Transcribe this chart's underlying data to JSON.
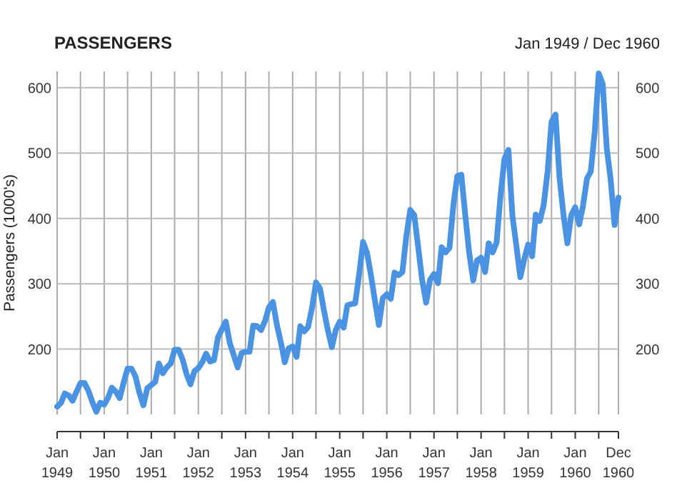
{
  "chart_data": {
    "type": "line",
    "title": "PASSENGERS",
    "subtitle": "Jan 1949 / Dec 1960",
    "ylabel": "Passengers (1000's)",
    "xlim": [
      "1949-01",
      "1960-12"
    ],
    "xticks": [
      {
        "value": "1949-01",
        "label": "Jan 1949"
      },
      {
        "value": "1949-07",
        "label": null
      },
      {
        "value": "1950-01",
        "label": "Jan 1950"
      },
      {
        "value": "1950-07",
        "label": null
      },
      {
        "value": "1951-01",
        "label": "Jan 1951"
      },
      {
        "value": "1951-07",
        "label": null
      },
      {
        "value": "1952-01",
        "label": "Jan 1952"
      },
      {
        "value": "1952-07",
        "label": null
      },
      {
        "value": "1953-01",
        "label": "Jan 1953"
      },
      {
        "value": "1953-07",
        "label": null
      },
      {
        "value": "1954-01",
        "label": "Jan 1954"
      },
      {
        "value": "1954-07",
        "label": null
      },
      {
        "value": "1955-01",
        "label": "Jan 1955"
      },
      {
        "value": "1955-07",
        "label": null
      },
      {
        "value": "1956-01",
        "label": "Jan 1956"
      },
      {
        "value": "1956-07",
        "label": null
      },
      {
        "value": "1957-01",
        "label": "Jan 1957"
      },
      {
        "value": "1957-07",
        "label": null
      },
      {
        "value": "1958-01",
        "label": "Jan 1958"
      },
      {
        "value": "1958-07",
        "label": null
      },
      {
        "value": "1959-01",
        "label": "Jan 1959"
      },
      {
        "value": "1959-07",
        "label": null
      },
      {
        "value": "1960-01",
        "label": "Jan 1960"
      },
      {
        "value": "1960-07",
        "label": null
      },
      {
        "value": "1960-12",
        "label": "Dec 1960"
      }
    ],
    "ylim": [
      100,
      625
    ],
    "yticks": [
      200,
      300,
      400,
      500,
      600
    ],
    "y2lim": [
      100,
      625
    ],
    "y2ticks": [
      200,
      300,
      400,
      500,
      600
    ],
    "grid": true,
    "marker": "none",
    "line_style": "solid",
    "x": [
      "1949-01",
      "1949-02",
      "1949-03",
      "1949-04",
      "1949-05",
      "1949-06",
      "1949-07",
      "1949-08",
      "1949-09",
      "1949-10",
      "1949-11",
      "1949-12",
      "1950-01",
      "1950-02",
      "1950-03",
      "1950-04",
      "1950-05",
      "1950-06",
      "1950-07",
      "1950-08",
      "1950-09",
      "1950-10",
      "1950-11",
      "1950-12",
      "1951-01",
      "1951-02",
      "1951-03",
      "1951-04",
      "1951-05",
      "1951-06",
      "1951-07",
      "1951-08",
      "1951-09",
      "1951-10",
      "1951-11",
      "1951-12",
      "1952-01",
      "1952-02",
      "1952-03",
      "1952-04",
      "1952-05",
      "1952-06",
      "1952-07",
      "1952-08",
      "1952-09",
      "1952-10",
      "1952-11",
      "1952-12",
      "1953-01",
      "1953-02",
      "1953-03",
      "1953-04",
      "1953-05",
      "1953-06",
      "1953-07",
      "1953-08",
      "1953-09",
      "1953-10",
      "1953-11",
      "1953-12",
      "1954-01",
      "1954-02",
      "1954-03",
      "1954-04",
      "1954-05",
      "1954-06",
      "1954-07",
      "1954-08",
      "1954-09",
      "1954-10",
      "1954-11",
      "1954-12",
      "1955-01",
      "1955-02",
      "1955-03",
      "1955-04",
      "1955-05",
      "1955-06",
      "1955-07",
      "1955-08",
      "1955-09",
      "1955-10",
      "1955-11",
      "1955-12",
      "1956-01",
      "1956-02",
      "1956-03",
      "1956-04",
      "1956-05",
      "1956-06",
      "1956-07",
      "1956-08",
      "1956-09",
      "1956-10",
      "1956-11",
      "1956-12",
      "1957-01",
      "1957-02",
      "1957-03",
      "1957-04",
      "1957-05",
      "1957-06",
      "1957-07",
      "1957-08",
      "1957-09",
      "1957-10",
      "1957-11",
      "1957-12",
      "1958-01",
      "1958-02",
      "1958-03",
      "1958-04",
      "1958-05",
      "1958-06",
      "1958-07",
      "1958-08",
      "1958-09",
      "1958-10",
      "1958-11",
      "1958-12",
      "1959-01",
      "1959-02",
      "1959-03",
      "1959-04",
      "1959-05",
      "1959-06",
      "1959-07",
      "1959-08",
      "1959-09",
      "1959-10",
      "1959-11",
      "1959-12",
      "1960-01",
      "1960-02",
      "1960-03",
      "1960-04",
      "1960-05",
      "1960-06",
      "1960-07",
      "1960-08",
      "1960-09",
      "1960-10",
      "1960-11",
      "1960-12"
    ],
    "series": [
      {
        "color": "#4a93e3",
        "values": [
          112,
          118,
          132,
          129,
          121,
          135,
          148,
          148,
          136,
          119,
          104,
          118,
          115,
          126,
          141,
          135,
          125,
          149,
          170,
          170,
          158,
          133,
          114,
          140,
          145,
          150,
          178,
          163,
          172,
          178,
          199,
          199,
          184,
          162,
          146,
          166,
          171,
          180,
          193,
          181,
          183,
          218,
          230,
          242,
          209,
          191,
          172,
          194,
          196,
          196,
          236,
          235,
          229,
          243,
          264,
          272,
          237,
          211,
          180,
          201,
          204,
          188,
          235,
          227,
          234,
          264,
          302,
          293,
          259,
          229,
          203,
          229,
          242,
          233,
          267,
          269,
          270,
          315,
          364,
          347,
          312,
          274,
          237,
          278,
          284,
          277,
          317,
          313,
          318,
          374,
          413,
          405,
          355,
          306,
          271,
          306,
          315,
          301,
          356,
          348,
          355,
          422,
          465,
          467,
          404,
          347,
          305,
          336,
          340,
          318,
          362,
          348,
          363,
          435,
          491,
          505,
          404,
          359,
          310,
          337,
          360,
          342,
          406,
          396,
          420,
          472,
          548,
          559,
          463,
          407,
          362,
          405,
          417,
          391,
          419,
          461,
          472,
          535,
          622,
          606,
          508,
          461,
          390,
          432
        ]
      }
    ]
  }
}
